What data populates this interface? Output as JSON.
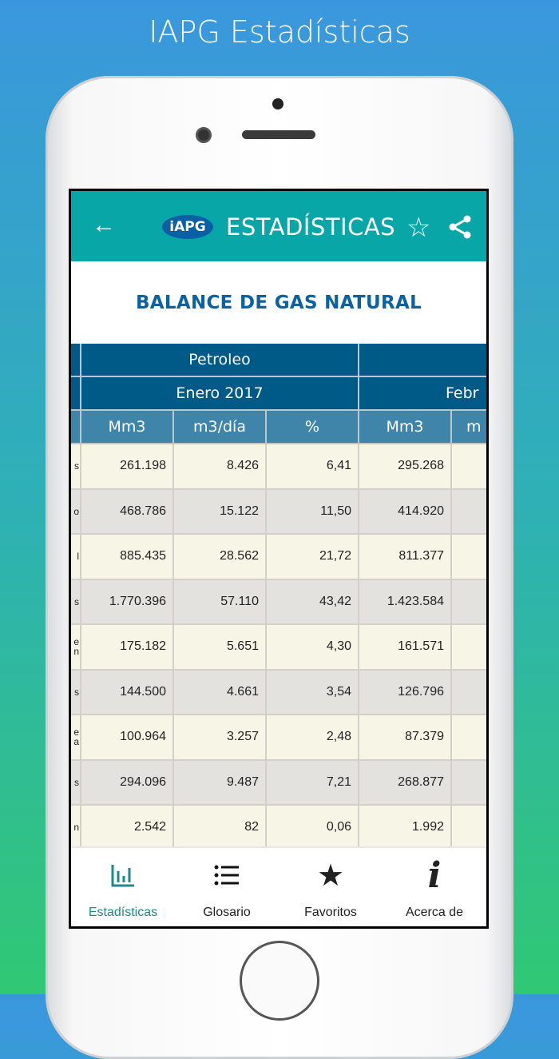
{
  "promo_title": "IAPG Estadísticas",
  "appbar": {
    "title": "ESTADÍSTICAS",
    "logo_text": "iAPG",
    "back_icon": "arrow-left-icon",
    "favorite_icon": "star-outline-icon",
    "share_icon": "share-icon"
  },
  "page_title": "BALANCE DE GAS NATURAL",
  "table": {
    "group_header": "Petroleo",
    "months": [
      "Enero 2017",
      "Febr"
    ],
    "columns": [
      "Mm3",
      "m3/día",
      "%",
      "Mm3",
      "m"
    ],
    "rows": [
      {
        "label": "s",
        "values": [
          "261.198",
          "8.426",
          "6,41",
          "295.268"
        ]
      },
      {
        "label": "o",
        "values": [
          "468.786",
          "15.122",
          "11,50",
          "414.920"
        ]
      },
      {
        "label": "l",
        "values": [
          "885.435",
          "28.562",
          "21,72",
          "811.377"
        ]
      },
      {
        "label": "s",
        "values": [
          "1.770.396",
          "57.110",
          "43,42",
          "1.423.584"
        ]
      },
      {
        "label": "e\nn",
        "values": [
          "175.182",
          "5.651",
          "4,30",
          "161.571"
        ]
      },
      {
        "label": "s",
        "values": [
          "144.500",
          "4.661",
          "3,54",
          "126.796"
        ]
      },
      {
        "label": "e\na",
        "values": [
          "100.964",
          "3.257",
          "2,48",
          "87.379"
        ]
      },
      {
        "label": "s",
        "values": [
          "294.096",
          "9.487",
          "7,21",
          "268.877"
        ]
      },
      {
        "label": "n",
        "values": [
          "2.542",
          "82",
          "0,06",
          "1.992"
        ]
      },
      {
        "label": "",
        "values": [
          "",
          "",
          "",
          ""
        ]
      }
    ]
  },
  "nav": [
    {
      "label": "Estadísticas",
      "icon": "bar-chart-icon",
      "active": true
    },
    {
      "label": "Glosario",
      "icon": "list-icon"
    },
    {
      "label": "Favoritos",
      "icon": "star-icon"
    },
    {
      "label": "Acerca de",
      "icon": "info-icon"
    }
  ],
  "colors": {
    "appbar": "#09a6a8",
    "header_dark": "#005a88",
    "header_light": "#3f85aa",
    "title": "#0b62a0",
    "active_nav": "#1a8a8c"
  }
}
